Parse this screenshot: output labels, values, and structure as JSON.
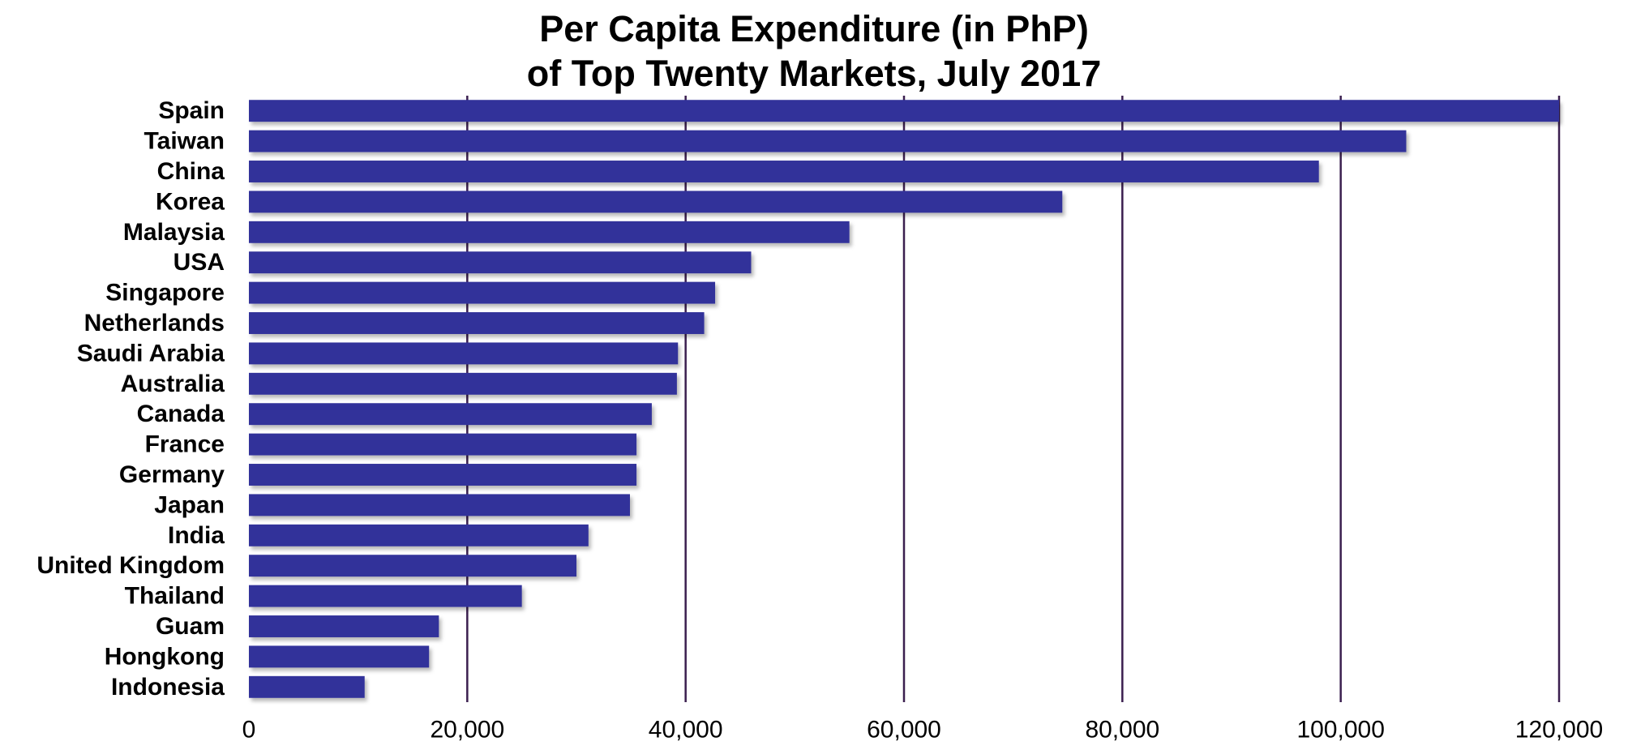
{
  "chart_data": {
    "type": "bar",
    "orientation": "horizontal",
    "title_lines": [
      "Per Capita Expenditure (in PhP)",
      "of Top Twenty Markets, July 2017"
    ],
    "categories": [
      "Spain",
      "Taiwan",
      "China",
      "Korea",
      "Malaysia",
      "USA",
      "Singapore",
      "Netherlands",
      "Saudi Arabia",
      "Australia",
      "Canada",
      "France",
      "Germany",
      "Japan",
      "India",
      "United Kingdom",
      "Thailand",
      "Guam",
      "Hongkong",
      "Indonesia"
    ],
    "values": [
      120000,
      106000,
      98000,
      74500,
      55000,
      46000,
      42700,
      41700,
      39300,
      39200,
      36900,
      35500,
      35500,
      34900,
      31100,
      30000,
      25000,
      17400,
      16500,
      10600
    ],
    "xlim": [
      0,
      120000
    ],
    "xticks": [
      0,
      20000,
      40000,
      60000,
      80000,
      100000,
      120000
    ],
    "xtick_labels": [
      "0",
      "20,000",
      "40,000",
      "60,000",
      "80,000",
      "100,000",
      "120,000"
    ],
    "xlabel": "",
    "ylabel": "",
    "grid": "vertical",
    "legend": "none",
    "bar_color": "#33339a",
    "grid_color": "#3b1f4f"
  }
}
